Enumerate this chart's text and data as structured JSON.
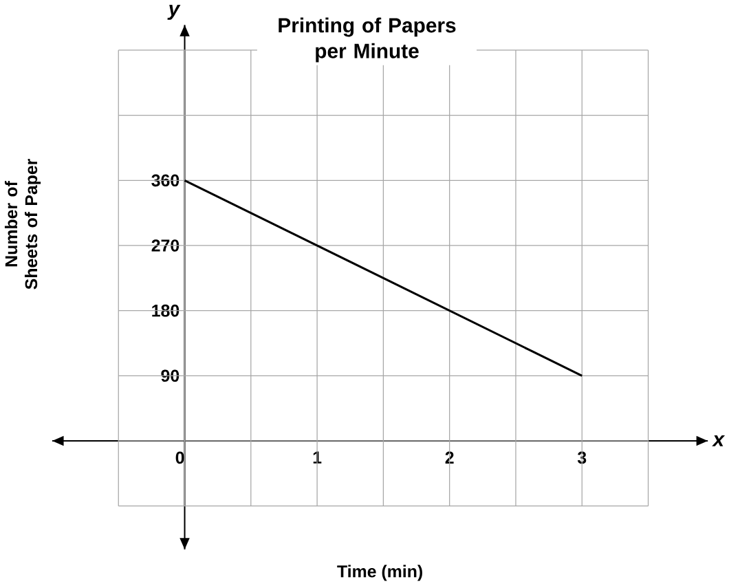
{
  "chart_data": {
    "type": "line",
    "title": "Printing of Papers per Minute",
    "xlabel": "Time (min)",
    "ylabel": "Number of Sheets of Paper",
    "annotations": [
      "y",
      "x"
    ],
    "x": [
      0,
      3
    ],
    "values": [
      360,
      90
    ],
    "color": "#000000",
    "xlim": [
      -1.0,
      3.95
    ],
    "ylim": [
      -150,
      575
    ],
    "xticks": [
      {
        "value": -0.5,
        "label": null
      },
      0,
      {
        "value": 0.5,
        "label": null
      },
      1,
      {
        "value": 1.5,
        "label": null
      },
      2,
      {
        "value": 2.5,
        "label": null
      },
      3,
      {
        "value": 3.5,
        "label": null
      }
    ],
    "yticks": [
      {
        "value": -90,
        "label": null
      },
      {
        "value": 0,
        "label": null
      },
      90,
      180,
      270,
      360,
      {
        "value": 450,
        "label": null
      },
      {
        "value": 540,
        "label": null
      }
    ],
    "grid": true,
    "marker": "none",
    "line_style": "solid"
  }
}
